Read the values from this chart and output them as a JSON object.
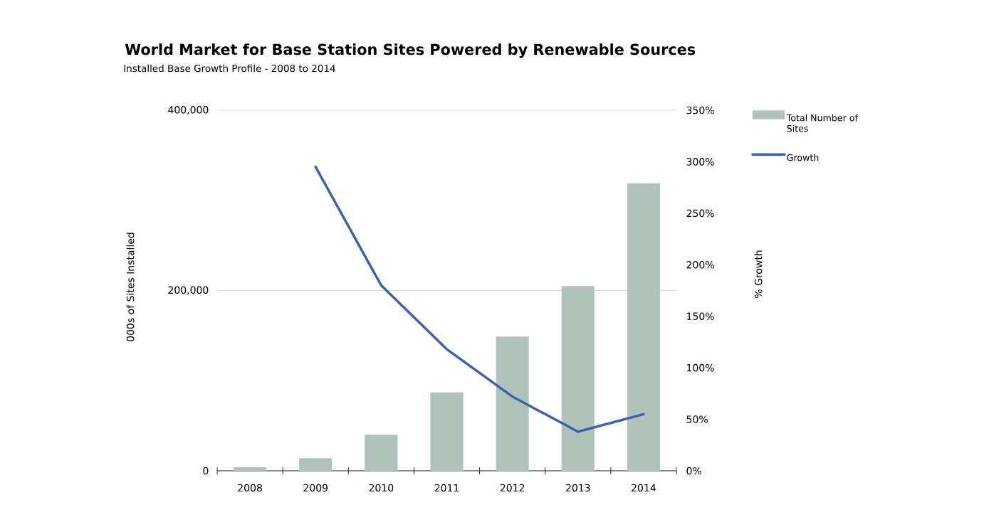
{
  "chart_data": {
    "type": "bar",
    "title": "World Market for Base Station Sites Powered by Renewable Sources",
    "subtitle": "Installed Base Growth Profile - 2008 to 2014",
    "ylabel": "000s of Sites Installed",
    "y2label": "% Growth",
    "categories": [
      "2008",
      "2009",
      "2010",
      "2011",
      "2012",
      "2013",
      "2014"
    ],
    "series": [
      {
        "name": "Total Number of Sites",
        "color": "#b1c2bb",
        "values": [
          4000,
          14000,
          40000,
          87000,
          149000,
          205000,
          319000
        ]
      },
      {
        "name": "Growth",
        "type": "line",
        "axis": "y2",
        "color": "#3f60ad",
        "values": [
          null,
          295,
          180,
          118,
          72,
          38,
          55
        ]
      }
    ],
    "ylim": [
      0,
      400000
    ],
    "yticks": [
      {
        "value": 0,
        "label": "0"
      },
      {
        "value": 200000,
        "label": "200,000"
      },
      {
        "value": 400000,
        "label": "400,000"
      }
    ],
    "y2lim": [
      0,
      350
    ],
    "y2ticks": [
      {
        "value": 0,
        "label": "0%"
      },
      {
        "value": 50,
        "label": "50%"
      },
      {
        "value": 100,
        "label": "100%"
      },
      {
        "value": 150,
        "label": "150%"
      },
      {
        "value": 200,
        "label": "200%"
      },
      {
        "value": 250,
        "label": "250%"
      },
      {
        "value": 300,
        "label": "300%"
      },
      {
        "value": 350,
        "label": "350%"
      }
    ],
    "grid": "y",
    "legend": "top right",
    "marker": "none",
    "line_style": "solid"
  }
}
